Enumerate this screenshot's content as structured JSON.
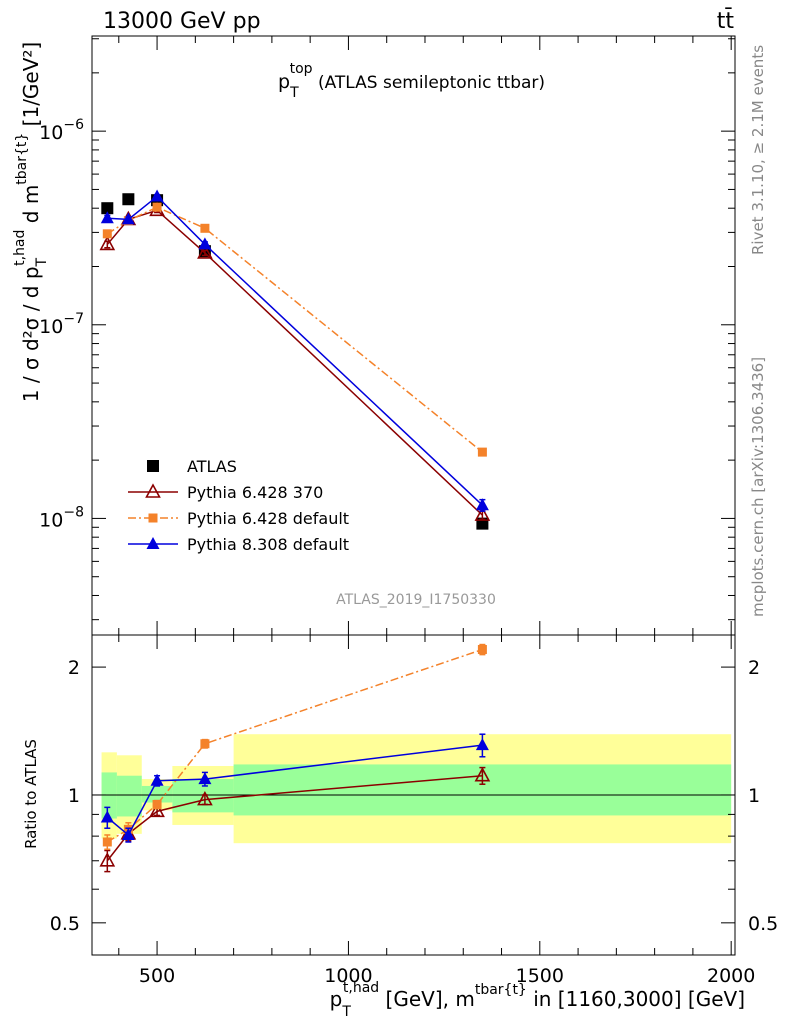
{
  "header": {
    "left": "13000 GeV pp",
    "right": "tt̄"
  },
  "side": {
    "rivet": "Rivet 3.1.10, ≥ 2.1M events",
    "mcplots": "mcplots.cern.ch [arXiv:1306.3436]"
  },
  "plot_title": {
    "main": "p",
    "sup": "top",
    "sub": "T",
    "rest": " (ATLAS semileptonic ttbar)"
  },
  "analysis_id": "ATLAS_2019_I1750330",
  "axis_labels": {
    "y_main": "1 / σ d²σ / d p",
    "y_main_sub": "T",
    "y_main_sup": "t,had",
    "y_main_rest": " d m",
    "y_main_sup2": "tbar{t}",
    "y_main_unit": " [1/GeV²]",
    "y_ratio": "Ratio to ATLAS",
    "x_main": "p",
    "x_sub": "T",
    "x_sup": "t,had",
    "x_mid": " [GeV], m",
    "x_sup2": "tbar{t}",
    "x_rest": " in [1160,3000] [GeV]"
  },
  "chart_data": [
    {
      "type": "scatter",
      "panel": "main",
      "yscale": "log",
      "xlim": [
        330,
        2010
      ],
      "ylim": [
        2.5e-09,
        3.1e-06
      ],
      "yticks": [
        {
          "value": 1e-08,
          "base": "10",
          "exp": "−8"
        },
        {
          "value": 1e-07,
          "base": "10",
          "exp": "−7"
        },
        {
          "value": 1e-06,
          "base": "10",
          "exp": "−6"
        }
      ],
      "legend_position": "lower-left",
      "series": [
        {
          "name": "ATLAS",
          "color": "#000000",
          "marker": "square",
          "x": [
            370,
            425,
            500,
            625,
            1350
          ],
          "y": [
            4e-07,
            4.45e-07,
            4.4e-07,
            2.4e-07,
            9.4e-09
          ]
        },
        {
          "name": "Pythia 6.428 370",
          "color": "#8b0000",
          "marker": "open-triangle",
          "line": "solid",
          "x": [
            370,
            425,
            500,
            625,
            1350
          ],
          "y": [
            2.6e-07,
            3.5e-07,
            3.9e-07,
            2.35e-07,
            1.04e-08
          ],
          "err": [
            1e-08,
            1e-08,
            1e-08,
            7e-09,
            5e-10
          ]
        },
        {
          "name": "Pythia 6.428 default",
          "color": "#f4822a",
          "marker": "square-small",
          "line": "dashdot",
          "x": [
            370,
            425,
            500,
            625,
            1350
          ],
          "y": [
            2.95e-07,
            3.45e-07,
            4.05e-07,
            3.15e-07,
            2.2e-08
          ],
          "err": [
            1e-08,
            1e-08,
            1e-08,
            8e-09,
            6e-10
          ]
        },
        {
          "name": "Pythia 8.308 default",
          "color": "#0000dd",
          "marker": "triangle",
          "line": "solid",
          "x": [
            370,
            425,
            500,
            625,
            1350
          ],
          "y": [
            3.55e-07,
            3.5e-07,
            4.6e-07,
            2.6e-07,
            1.17e-08
          ],
          "err": [
            1.2e-08,
            1e-08,
            1e-08,
            8e-09,
            8e-10
          ]
        }
      ]
    },
    {
      "type": "scatter",
      "panel": "ratio",
      "yscale": "log",
      "xlim": [
        330,
        2010
      ],
      "ylim": [
        0.42,
        2.38
      ],
      "yticks": [
        {
          "value": 0.5,
          "label": "0.5"
        },
        {
          "value": 1,
          "label": "1"
        },
        {
          "value": 2,
          "label": "2"
        }
      ],
      "xticks": [
        {
          "value": 500,
          "label": "500"
        },
        {
          "value": 1000,
          "label": "1000"
        },
        {
          "value": 1500,
          "label": "1500"
        },
        {
          "value": 2000,
          "label": "2000"
        }
      ],
      "bands": [
        {
          "x": [
            355,
            395
          ],
          "stat": [
            0.88,
            1.13
          ],
          "total": [
            0.79,
            1.26
          ]
        },
        {
          "x": [
            395,
            460
          ],
          "stat": [
            0.89,
            1.11
          ],
          "total": [
            0.81,
            1.24
          ]
        },
        {
          "x": [
            460,
            540
          ],
          "stat": [
            0.96,
            1.05
          ],
          "total": [
            0.92,
            1.09
          ]
        },
        {
          "x": [
            540,
            700
          ],
          "stat": [
            0.91,
            1.09
          ],
          "total": [
            0.85,
            1.17
          ]
        },
        {
          "x": [
            700,
            2000
          ],
          "stat": [
            0.895,
            1.18
          ],
          "total": [
            0.77,
            1.39
          ]
        }
      ],
      "series": [
        {
          "name": "Pythia 6.428 370",
          "color": "#8b0000",
          "marker": "open-triangle",
          "x": [
            370,
            425,
            500,
            625,
            1350
          ],
          "y": [
            0.7,
            0.81,
            0.915,
            0.975,
            1.11
          ],
          "err": [
            0.04,
            0.03,
            0.02,
            0.025,
            0.05
          ]
        },
        {
          "name": "Pythia 6.428 default",
          "color": "#f4822a",
          "marker": "square-small",
          "x": [
            370,
            425,
            500,
            625,
            1350
          ],
          "y": [
            0.775,
            0.83,
            0.95,
            1.32,
            2.2
          ],
          "err": [
            0.03,
            0.03,
            0.02,
            0.03,
            0.06
          ]
        },
        {
          "name": "Pythia 8.308 default",
          "color": "#0000dd",
          "marker": "triangle",
          "x": [
            370,
            425,
            500,
            625,
            1350
          ],
          "y": [
            0.885,
            0.805,
            1.08,
            1.09,
            1.31
          ],
          "err": [
            0.05,
            0.03,
            0.03,
            0.04,
            0.08
          ]
        }
      ]
    }
  ]
}
